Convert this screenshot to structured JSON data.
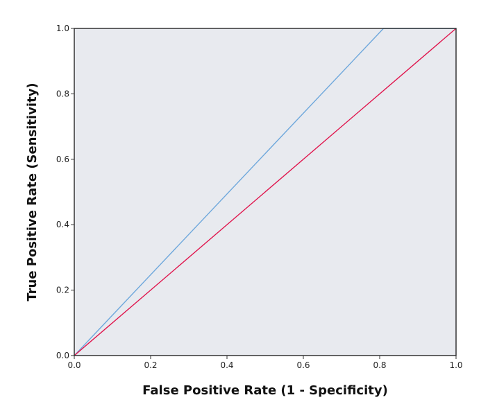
{
  "chart_data": {
    "type": "line",
    "title": "",
    "xlabel": "False Positive Rate (1 - Specificity)",
    "ylabel": "True Positive Rate (Sensitivity)",
    "xlim": [
      0.0,
      1.0
    ],
    "ylim": [
      0.0,
      1.0
    ],
    "x_ticks": [
      "0.0",
      "0.2",
      "0.4",
      "0.6",
      "0.8",
      "1.0"
    ],
    "y_ticks": [
      "0.0",
      "0.2",
      "0.4",
      "0.6",
      "0.8",
      "1.0"
    ],
    "grid": false,
    "legend": "none",
    "series": [
      {
        "points": [
          [
            0.0,
            0.0
          ],
          [
            0.81,
            1.0
          ],
          [
            1.0,
            1.0
          ]
        ],
        "color": "#6fa8dc"
      },
      {
        "points": [
          [
            0.0,
            0.0
          ],
          [
            1.0,
            1.0
          ]
        ],
        "color": "#e0144c"
      }
    ],
    "colors": {
      "plot_background": "#e8eaef",
      "axis": "#333333"
    }
  }
}
